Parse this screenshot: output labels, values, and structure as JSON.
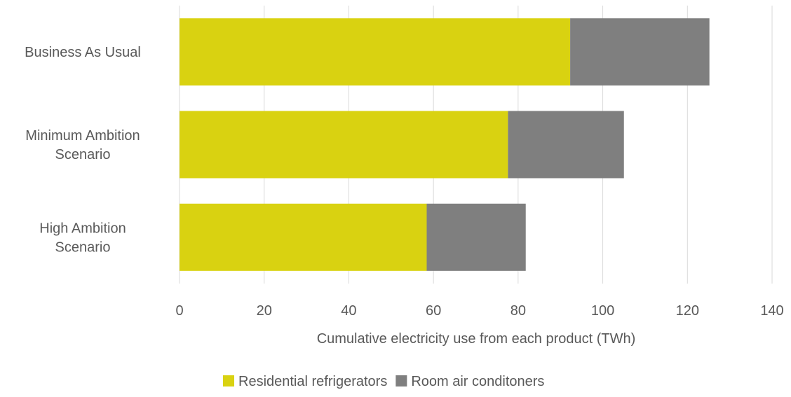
{
  "chart_data": {
    "type": "bar",
    "orientation": "horizontal",
    "stacked": true,
    "categories": [
      [
        "Business As Usual"
      ],
      [
        "Minimum Ambition",
        "Scenario"
      ],
      [
        "High Ambition",
        "Scenario"
      ]
    ],
    "series": [
      {
        "name": "Residential refrigerators",
        "color": "#d9d211",
        "values": [
          92.3,
          77.6,
          58.4
        ]
      },
      {
        "name": "Room air conditoners",
        "color": "#7f7f7f",
        "values": [
          32.9,
          27.4,
          23.4
        ]
      }
    ],
    "xlabel": "Cumulative electricity use from each product (TWh)",
    "xlim": [
      0,
      140
    ],
    "xticks": [
      0,
      20,
      40,
      60,
      80,
      100,
      120,
      140
    ],
    "grid": true,
    "legend_position": "bottom"
  }
}
